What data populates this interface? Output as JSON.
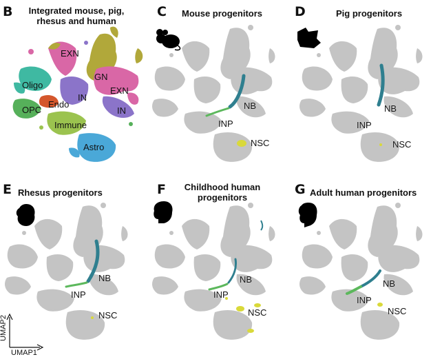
{
  "panels": [
    {
      "id": "B",
      "letter": "B",
      "title": "Integrated mouse, pig,\nrhesus and human",
      "labels": [
        "EXN",
        "GN",
        "Oligo",
        "IN",
        "EXN",
        "Endo",
        "OPC",
        "IN",
        "Immune",
        "Astro"
      ]
    },
    {
      "id": "C",
      "letter": "C",
      "title": "Mouse progenitors",
      "icon": "mouse-icon",
      "labels": [
        "NB",
        "INP",
        "NSC"
      ]
    },
    {
      "id": "D",
      "letter": "D",
      "title": "Pig progenitors",
      "icon": "pig-icon",
      "labels": [
        "NB",
        "INP",
        "NSC"
      ]
    },
    {
      "id": "E",
      "letter": "E",
      "title": "Rhesus progenitors",
      "icon": "rhesus-icon",
      "labels": [
        "NB",
        "INP",
        "NSC"
      ]
    },
    {
      "id": "F",
      "letter": "F",
      "title": "Childhood human\nprogenitors",
      "icon": "child-icon",
      "labels": [
        "NB",
        "INP",
        "NSC"
      ]
    },
    {
      "id": "G",
      "letter": "G",
      "title": "Adult human progenitors",
      "icon": "adult-icon",
      "labels": [
        "NB",
        "INP",
        "NSC"
      ]
    }
  ],
  "axes": {
    "x": "UMAP1",
    "y": "UMAP2"
  },
  "colors": {
    "grey": "#c4c4c4",
    "nb": "#2f7f8f",
    "inp": "#5cb85c",
    "nsc": "#d9d93a",
    "exn": "#d967a6",
    "gn": "#b1a83a",
    "oligo": "#3fb9a2",
    "in": "#8b74c9",
    "endo": "#d4572c",
    "opc": "#56b05a",
    "immune": "#9bc34f",
    "astro": "#4aa8d8"
  }
}
